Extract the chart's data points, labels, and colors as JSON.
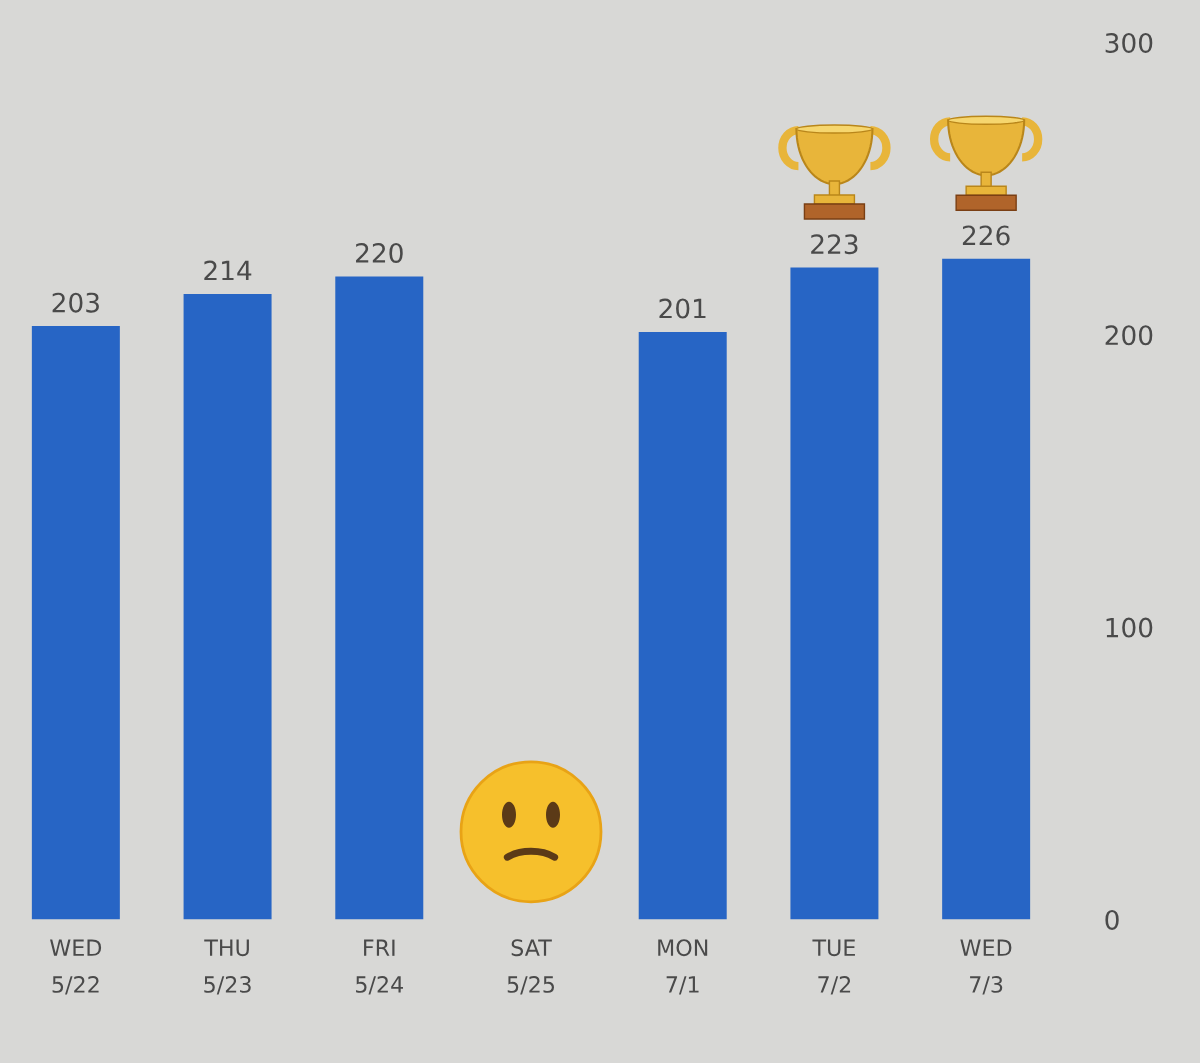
{
  "chart_data": {
    "type": "bar",
    "categories": [
      "WED\n5/22",
      "THU\n5/23",
      "FRI\n5/24",
      "SAT\n5/25",
      "MON\n7/1",
      "TUE\n7/2",
      "WED\n7/3"
    ],
    "values": [
      203,
      214,
      220,
      null,
      201,
      223,
      226
    ],
    "color": "#2765c5",
    "ylim": [
      0,
      300
    ],
    "yticks": [
      0,
      100,
      200,
      300
    ],
    "data_labels": true
  }
}
